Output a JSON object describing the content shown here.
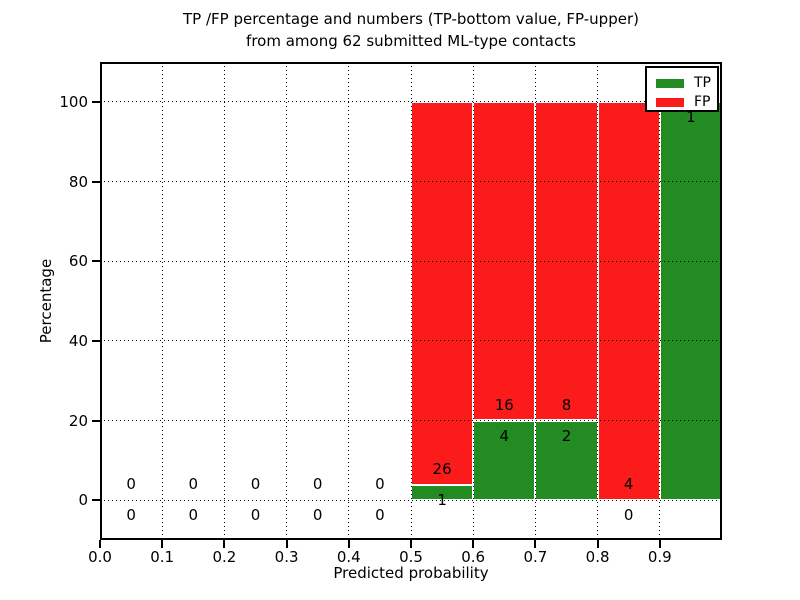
{
  "chart_data": {
    "type": "bar",
    "stacked": true,
    "title": "TP /FP percentage and numbers (TP-bottom value, FP-upper)\nfrom among 62 submitted ML-type contacts",
    "title_line1": "TP /FP percentage and numbers (TP-bottom value, FP-upper)",
    "title_line2": "from among 62 submitted ML-type contacts",
    "xlabel": "Predicted probability",
    "ylabel": "Percentage",
    "xlim": [
      0.0,
      1.0
    ],
    "ylim": [
      -10,
      110
    ],
    "grid": true,
    "total_submitted_contacts": 62,
    "legend": {
      "position": "upper right",
      "entries": [
        {
          "label": "TP",
          "color": "#228b22"
        },
        {
          "label": "FP",
          "color": "#fb1b1b"
        }
      ]
    },
    "x_ticks": [
      {
        "value": 0.0,
        "label": "0.0"
      },
      {
        "value": 0.1,
        "label": "0.1"
      },
      {
        "value": 0.2,
        "label": "0.2"
      },
      {
        "value": 0.3,
        "label": "0.3"
      },
      {
        "value": 0.4,
        "label": "0.4"
      },
      {
        "value": 0.5,
        "label": "0.5"
      },
      {
        "value": 0.6,
        "label": "0.6"
      },
      {
        "value": 0.7,
        "label": "0.7"
      },
      {
        "value": 0.8,
        "label": "0.8"
      },
      {
        "value": 0.9,
        "label": "0.9"
      }
    ],
    "y_ticks": [
      {
        "value": 0,
        "label": "0"
      },
      {
        "value": 20,
        "label": "20"
      },
      {
        "value": 40,
        "label": "40"
      },
      {
        "value": 60,
        "label": "60"
      },
      {
        "value": 80,
        "label": "80"
      },
      {
        "value": 100,
        "label": "100"
      }
    ],
    "bins": [
      {
        "range": [
          0.0,
          0.1
        ],
        "tp": 0,
        "fp": 0,
        "tp_percent": 0,
        "fp_percent": 0
      },
      {
        "range": [
          0.1,
          0.2
        ],
        "tp": 0,
        "fp": 0,
        "tp_percent": 0,
        "fp_percent": 0
      },
      {
        "range": [
          0.2,
          0.3
        ],
        "tp": 0,
        "fp": 0,
        "tp_percent": 0,
        "fp_percent": 0
      },
      {
        "range": [
          0.3,
          0.4
        ],
        "tp": 0,
        "fp": 0,
        "tp_percent": 0,
        "fp_percent": 0
      },
      {
        "range": [
          0.4,
          0.5
        ],
        "tp": 0,
        "fp": 0,
        "tp_percent": 0,
        "fp_percent": 0
      },
      {
        "range": [
          0.5,
          0.6
        ],
        "tp": 1,
        "fp": 26,
        "tp_percent": 3.7,
        "fp_percent": 96.3
      },
      {
        "range": [
          0.6,
          0.7
        ],
        "tp": 4,
        "fp": 16,
        "tp_percent": 20,
        "fp_percent": 80
      },
      {
        "range": [
          0.7,
          0.8
        ],
        "tp": 2,
        "fp": 8,
        "tp_percent": 20,
        "fp_percent": 80
      },
      {
        "range": [
          0.8,
          0.9
        ],
        "tp": 0,
        "fp": 4,
        "tp_percent": 0,
        "fp_percent": 100
      },
      {
        "range": [
          0.9,
          1.0
        ],
        "tp": 1,
        "fp": 0,
        "tp_percent": 100,
        "fp_percent": 0
      }
    ]
  },
  "colors": {
    "tp": "#228b22",
    "fp": "#fb1b1b",
    "grid": "#000000",
    "frame": "#000000",
    "background": "#ffffff",
    "text": "#000000"
  }
}
